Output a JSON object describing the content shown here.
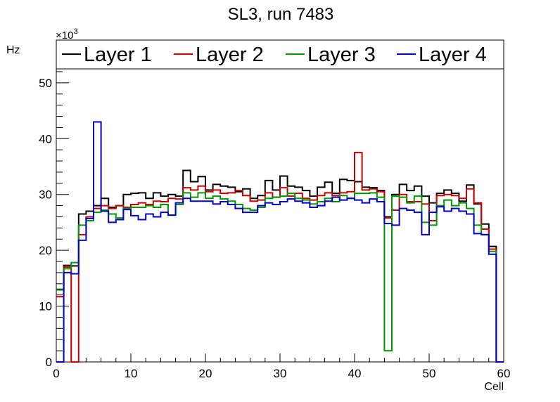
{
  "chart_data": {
    "type": "histogram-step",
    "title": "SL3, run 7483",
    "xlabel": "Cell",
    "ylabel": "Hz",
    "y_exponent_label": "×10",
    "y_exponent_power": "3",
    "xlim": [
      0,
      60
    ],
    "ylim": [
      0,
      52.5
    ],
    "x_major_ticks": [
      0,
      10,
      20,
      30,
      40,
      50,
      60
    ],
    "x_tick_labels": [
      "0",
      "10",
      "20",
      "30",
      "40",
      "50",
      "60"
    ],
    "y_major_ticks": [
      0,
      10,
      20,
      30,
      40,
      50
    ],
    "y_tick_labels": [
      "0",
      "10",
      "20",
      "30",
      "40",
      "50"
    ],
    "bin_edges_start": 0,
    "bin_width": 1,
    "legend_position": "top, spanning plot width",
    "series": [
      {
        "name": "Layer 1",
        "color": "#000000",
        "values": [
          13.0,
          17.3,
          17.2,
          26.5,
          27.0,
          28.0,
          29.3,
          27.7,
          28.0,
          30.0,
          30.2,
          30.3,
          29.3,
          30.3,
          29.7,
          30.0,
          29.7,
          34.3,
          32.3,
          33.2,
          30.8,
          31.8,
          31.5,
          31.3,
          30.5,
          31.0,
          29.3,
          29.8,
          32.5,
          30.8,
          33.3,
          31.5,
          31.3,
          30.7,
          29.7,
          31.3,
          32.2,
          30.2,
          32.7,
          32.5,
          32.3,
          31.3,
          31.2,
          30.7,
          26.0,
          30.0,
          31.8,
          30.7,
          31.5,
          29.7,
          28.5,
          30.2,
          30.8,
          30.2,
          28.8,
          31.7,
          28.3,
          24.7,
          20.7,
          0.0
        ]
      },
      {
        "name": "Layer 2",
        "color": "#cc0000",
        "values": [
          11.7,
          17.0,
          0.0,
          22.8,
          26.0,
          27.5,
          28.0,
          27.5,
          28.0,
          27.7,
          28.2,
          28.5,
          28.2,
          28.8,
          28.7,
          29.3,
          29.2,
          31.2,
          30.8,
          31.5,
          30.5,
          30.8,
          30.2,
          30.3,
          30.7,
          29.8,
          28.8,
          29.0,
          30.3,
          29.5,
          31.2,
          29.7,
          30.2,
          29.3,
          29.0,
          29.8,
          30.3,
          29.8,
          30.3,
          30.5,
          37.5,
          30.8,
          31.0,
          30.5,
          25.8,
          27.2,
          30.0,
          28.7,
          28.7,
          28.3,
          25.3,
          29.8,
          30.0,
          29.8,
          29.3,
          31.0,
          28.5,
          23.8,
          20.2,
          0.0
        ]
      },
      {
        "name": "Layer 3",
        "color": "#009900",
        "values": [
          12.9,
          16.7,
          17.8,
          24.5,
          25.3,
          26.8,
          27.2,
          26.5,
          25.8,
          27.5,
          27.7,
          27.7,
          28.0,
          27.7,
          28.2,
          26.3,
          28.2,
          30.3,
          29.5,
          30.3,
          29.3,
          29.7,
          29.2,
          28.8,
          28.2,
          27.5,
          27.2,
          27.7,
          29.3,
          29.5,
          29.7,
          30.2,
          29.3,
          29.0,
          28.3,
          28.7,
          29.3,
          28.7,
          29.8,
          29.3,
          30.2,
          30.2,
          30.3,
          29.5,
          2.0,
          29.7,
          29.5,
          28.5,
          29.7,
          25.0,
          24.5,
          28.0,
          29.0,
          28.0,
          28.5,
          27.5,
          24.5,
          22.8,
          19.8,
          0.0
        ]
      },
      {
        "name": "Layer 4",
        "color": "#0000cc",
        "values": [
          0.0,
          16.0,
          15.8,
          21.8,
          25.7,
          43.0,
          27.0,
          25.0,
          25.5,
          27.3,
          26.2,
          25.5,
          26.5,
          26.0,
          26.8,
          26.3,
          28.5,
          29.3,
          28.8,
          28.8,
          28.8,
          28.3,
          28.7,
          28.2,
          27.5,
          26.8,
          26.8,
          28.0,
          28.5,
          28.2,
          28.7,
          29.2,
          28.8,
          28.5,
          27.7,
          28.0,
          28.8,
          29.5,
          29.0,
          29.3,
          29.0,
          28.5,
          29.2,
          28.7,
          24.8,
          24.5,
          27.5,
          27.2,
          26.8,
          22.8,
          26.8,
          27.8,
          27.0,
          27.5,
          27.0,
          26.5,
          23.0,
          22.8,
          19.3,
          0.0
        ]
      }
    ]
  }
}
